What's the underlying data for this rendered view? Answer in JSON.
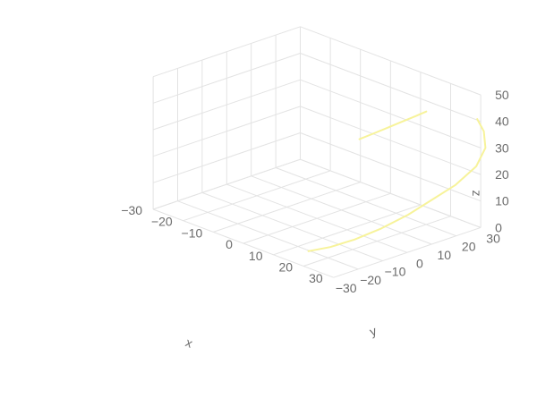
{
  "chart_data": {
    "type": "line3d",
    "title": "",
    "xlabel": "x",
    "ylabel": "y",
    "zlabel": "z",
    "x_ticks": [
      -30,
      -20,
      -10,
      0,
      10,
      20,
      30
    ],
    "y_ticks": [
      -30,
      -20,
      -10,
      0,
      10,
      20,
      30
    ],
    "z_ticks": [
      0,
      10,
      20,
      30,
      40,
      50
    ],
    "x_tick_labels": [
      "−30",
      "−20",
      "−10",
      "0",
      "10",
      "20",
      "30"
    ],
    "y_tick_labels": [
      "−30",
      "−20",
      "−10",
      "0",
      "10",
      "20",
      "30"
    ],
    "z_tick_labels": [
      "0",
      "10",
      "20",
      "30",
      "40",
      "50"
    ],
    "xlim": [
      -30,
      30
    ],
    "ylim": [
      -30,
      30
    ],
    "zlim": [
      0,
      50
    ],
    "grid": true,
    "line_color": "#f7f39a",
    "grid_color": "#e3e3e3",
    "text_color": "#6b6b6b",
    "series": [
      {
        "segments": [
          [
            {
              "x": -3,
              "y": 21,
              "z": 22
            },
            {
              "x": -1,
              "y": 25,
              "z": 24
            },
            {
              "x": 1,
              "y": 28,
              "z": 26
            },
            {
              "x": 3,
              "y": 31,
              "z": 28
            },
            {
              "x": 5,
              "y": 34,
              "z": 30
            },
            {
              "x": 7,
              "y": 36,
              "z": 32
            }
          ],
          [
            {
              "x": 20,
              "y": -28,
              "z": 5
            },
            {
              "x": 24,
              "y": -24,
              "z": 7
            },
            {
              "x": 28,
              "y": -19,
              "z": 10
            },
            {
              "x": 32,
              "y": -13,
              "z": 14
            },
            {
              "x": 36,
              "y": -7,
              "z": 19
            },
            {
              "x": 39,
              "y": -1,
              "z": 24
            },
            {
              "x": 42,
              "y": 5,
              "z": 29
            },
            {
              "x": 44,
              "y": 11,
              "z": 35
            },
            {
              "x": 43,
              "y": 16,
              "z": 40
            },
            {
              "x": 40,
              "y": 19,
              "z": 44
            },
            {
              "x": 37,
              "y": 20,
              "z": 47
            }
          ]
        ]
      }
    ]
  }
}
